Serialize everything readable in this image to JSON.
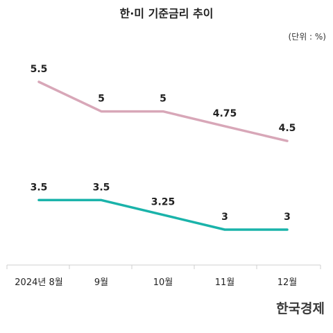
{
  "title": "한·미 기준금리 추이",
  "unit_label": "(단위 : %)",
  "logo": "한국경제",
  "chart_data": {
    "type": "line",
    "title": "한·미 기준금리 추이",
    "categories": [
      "2024년 8월",
      "9월",
      "10월",
      "11월",
      "12월"
    ],
    "series": [
      {
        "name": "",
        "color": "#d8a7b8",
        "values": [
          5.5,
          5,
          5,
          4.75,
          4.5
        ],
        "labels": [
          "5.5",
          "5",
          "5",
          "4.75",
          "4.5"
        ]
      },
      {
        "name": "",
        "color": "#1ab3aa",
        "values": [
          3.5,
          3.5,
          3.25,
          3,
          3
        ],
        "labels": [
          "3.5",
          "3.5",
          "3.25",
          "3",
          "3"
        ]
      }
    ],
    "grid": false,
    "legend": "none"
  }
}
